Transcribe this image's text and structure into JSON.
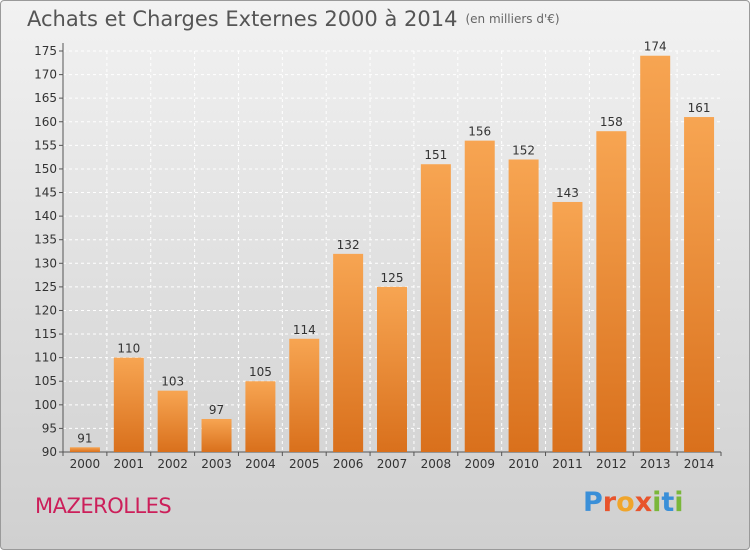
{
  "header": {
    "title": "Achats et Charges Externes 2000 à 2014",
    "unit": "(en milliers d'€)"
  },
  "footer": {
    "town": "MAZEROLLES",
    "logo_parts": [
      "P",
      "r",
      "o",
      "x",
      "i",
      "t",
      "i"
    ]
  },
  "colors": {
    "bar_light": "#f7a552",
    "bar_dark": "#d9701c",
    "town": "#cc1f5a"
  },
  "chart_data": {
    "type": "bar",
    "title": "Achats et Charges Externes 2000 à 2014",
    "subtitle": "(en milliers d'€)",
    "categories": [
      "2000",
      "2001",
      "2002",
      "2003",
      "2004",
      "2005",
      "2006",
      "2007",
      "2008",
      "2009",
      "2010",
      "2011",
      "2012",
      "2013",
      "2014"
    ],
    "values": [
      91,
      110,
      103,
      97,
      105,
      114,
      132,
      125,
      151,
      156,
      152,
      143,
      158,
      174,
      161
    ],
    "ylim": [
      90,
      175
    ],
    "yticks": [
      90,
      95,
      100,
      105,
      110,
      115,
      120,
      125,
      130,
      135,
      140,
      145,
      150,
      155,
      160,
      165,
      170,
      175
    ],
    "grid": true,
    "legend": "none"
  }
}
